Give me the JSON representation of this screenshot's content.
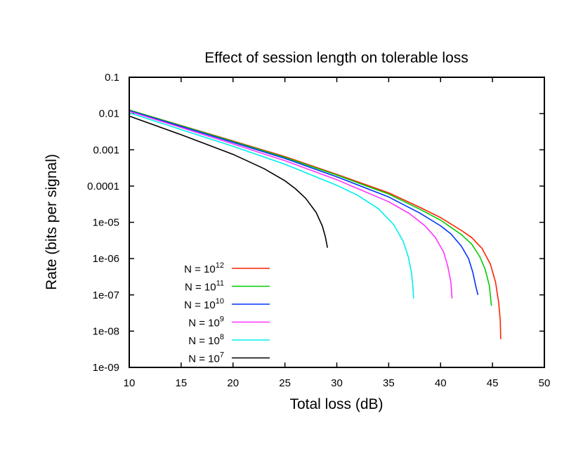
{
  "chart_data": {
    "type": "line",
    "title": "Effect of session length on tolerable loss",
    "xlabel": "Total loss (dB)",
    "ylabel": "Rate (bits per signal)",
    "xlim": [
      10,
      50
    ],
    "ylim": [
      1e-09,
      0.1
    ],
    "yscale": "log",
    "x_ticks": [
      "10",
      "15",
      "20",
      "25",
      "30",
      "35",
      "40",
      "45",
      "50"
    ],
    "y_ticks": [
      "0.1",
      "0.01",
      "0.001",
      "0.0001",
      "1e-05",
      "1e-06",
      "1e-07",
      "1e-08",
      "1e-09"
    ],
    "legend_position": "bottom-left",
    "series": [
      {
        "name": "N = 10^12",
        "label_base": "N = 10",
        "label_exp": "12",
        "color": "#ff2200",
        "points": [
          [
            10,
            0.0125
          ],
          [
            15,
            0.0047
          ],
          [
            20,
            0.00175
          ],
          [
            25,
            0.00065
          ],
          [
            30,
            0.00021
          ],
          [
            35,
            6.5e-05
          ],
          [
            38,
            2.6e-05
          ],
          [
            40,
            1.35e-05
          ],
          [
            42,
            6e-06
          ],
          [
            43,
            3.8e-06
          ],
          [
            44,
            1.9e-06
          ],
          [
            44.8,
            7e-07
          ],
          [
            45.3,
            2.2e-07
          ],
          [
            45.6,
            6e-08
          ],
          [
            45.75,
            2e-08
          ],
          [
            45.8,
            6e-09
          ]
        ]
      },
      {
        "name": "N = 10^11",
        "label_base": "N = 10",
        "label_exp": "11",
        "color": "#00cc00",
        "points": [
          [
            10,
            0.0125
          ],
          [
            15,
            0.0046
          ],
          [
            20,
            0.0017
          ],
          [
            25,
            0.00062
          ],
          [
            30,
            0.0002
          ],
          [
            35,
            6e-05
          ],
          [
            38,
            2.3e-05
          ],
          [
            40,
            1.15e-05
          ],
          [
            42,
            4.6e-06
          ],
          [
            43,
            2.5e-06
          ],
          [
            43.8,
            1.1e-06
          ],
          [
            44.3,
            5e-07
          ],
          [
            44.7,
            1.8e-07
          ],
          [
            44.9,
            5e-08
          ]
        ]
      },
      {
        "name": "N = 10^10",
        "label_base": "N = 10",
        "label_exp": "10",
        "color": "#0033ff",
        "points": [
          [
            10,
            0.012
          ],
          [
            15,
            0.0044
          ],
          [
            20,
            0.0016
          ],
          [
            25,
            0.00058
          ],
          [
            30,
            0.00018
          ],
          [
            35,
            5e-05
          ],
          [
            38,
            1.8e-05
          ],
          [
            40,
            8e-06
          ],
          [
            41,
            4.8e-06
          ],
          [
            42,
            2.2e-06
          ],
          [
            42.7,
            1e-06
          ],
          [
            43.1,
            4.2e-07
          ],
          [
            43.4,
            1.7e-07
          ],
          [
            43.6,
            1e-07
          ]
        ]
      },
      {
        "name": "N = 10^9",
        "label_base": "N = 10",
        "label_exp": "9",
        "color": "#ff33ff",
        "points": [
          [
            10,
            0.0115
          ],
          [
            15,
            0.0041
          ],
          [
            20,
            0.00145
          ],
          [
            25,
            0.0005
          ],
          [
            30,
            0.00015
          ],
          [
            35,
            3.7e-05
          ],
          [
            37,
            1.75e-05
          ],
          [
            38.5,
            8e-06
          ],
          [
            39.5,
            3.8e-06
          ],
          [
            40.3,
            1.5e-06
          ],
          [
            40.7,
            6e-07
          ],
          [
            41,
            2.2e-07
          ],
          [
            41.1,
            8e-08
          ]
        ]
      },
      {
        "name": "N = 10^8",
        "label_base": "N = 10",
        "label_exp": "8",
        "color": "#00eeee",
        "points": [
          [
            10,
            0.0105
          ],
          [
            15,
            0.0036
          ],
          [
            20,
            0.00125
          ],
          [
            25,
            0.0004
          ],
          [
            30,
            0.000105
          ],
          [
            32,
            5.6e-05
          ],
          [
            34,
            2.4e-05
          ],
          [
            35.5,
            8.5e-06
          ],
          [
            36.4,
            3e-06
          ],
          [
            36.9,
            1.1e-06
          ],
          [
            37.2,
            4e-07
          ],
          [
            37.35,
            1.5e-07
          ],
          [
            37.4,
            8e-08
          ]
        ]
      },
      {
        "name": "N = 10^7",
        "label_base": "N = 10",
        "label_exp": "7",
        "color": "#000000",
        "points": [
          [
            10,
            0.0085
          ],
          [
            15,
            0.0026
          ],
          [
            20,
            0.00075
          ],
          [
            23,
            0.0003
          ],
          [
            25,
            0.00014
          ],
          [
            26,
            8.5e-05
          ],
          [
            27,
            4.6e-05
          ],
          [
            28,
            1.9e-05
          ],
          [
            28.6,
            8e-06
          ],
          [
            28.9,
            4e-06
          ],
          [
            29.1,
            2e-06
          ]
        ]
      }
    ]
  }
}
